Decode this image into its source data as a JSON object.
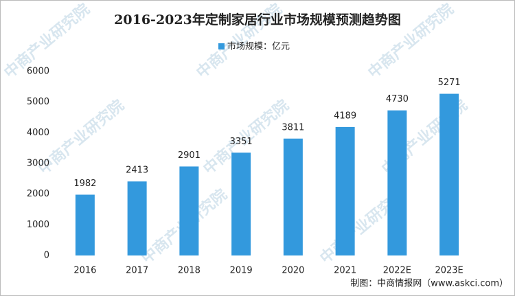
{
  "chart_data": {
    "type": "bar",
    "title": "2016-2023年定制家居行业市场规模预测趋势图",
    "categories": [
      "2016",
      "2017",
      "2018",
      "2019",
      "2020",
      "2021",
      "2022E",
      "2023E"
    ],
    "series": [
      {
        "name": "市场规模：亿元",
        "color": "#3399dd",
        "values": [
          1982,
          2413,
          2901,
          3351,
          3811,
          4189,
          4730,
          5271
        ]
      }
    ],
    "ylim": [
      0,
      6000
    ],
    "yticks": [
      0,
      1000,
      2000,
      3000,
      4000,
      5000,
      6000
    ],
    "grid": false,
    "source": "制图：中商情报网（www.askci.com）",
    "watermark": "中商产业研究院"
  }
}
